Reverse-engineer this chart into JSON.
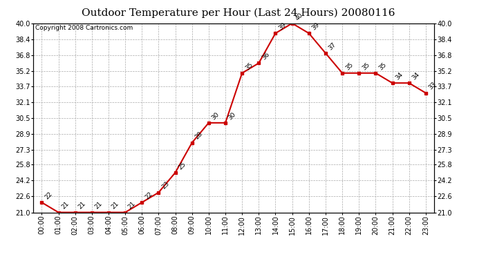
{
  "title": "Outdoor Temperature per Hour (Last 24 Hours) 20080116",
  "copyright": "Copyright 2008 Cartronics.com",
  "hours": [
    "00:00",
    "01:00",
    "02:00",
    "03:00",
    "04:00",
    "05:00",
    "06:00",
    "07:00",
    "08:00",
    "09:00",
    "10:00",
    "11:00",
    "12:00",
    "13:00",
    "14:00",
    "15:00",
    "16:00",
    "17:00",
    "18:00",
    "19:00",
    "20:00",
    "21:00",
    "22:00",
    "23:00"
  ],
  "temps": [
    22,
    21,
    21,
    21,
    21,
    21,
    22,
    23,
    25,
    28,
    30,
    30,
    35,
    36,
    39,
    40,
    39,
    37,
    35,
    35,
    35,
    34,
    34,
    33
  ],
  "ylim_min": 21.0,
  "ylim_max": 40.0,
  "yticks": [
    21.0,
    22.6,
    24.2,
    25.8,
    27.3,
    28.9,
    30.5,
    32.1,
    33.7,
    35.2,
    36.8,
    38.4,
    40.0
  ],
  "line_color": "#cc0000",
  "marker_color": "#cc0000",
  "bg_color": "#ffffff",
  "grid_color": "#aaaaaa",
  "title_fontsize": 11,
  "copyright_fontsize": 6.5,
  "label_fontsize": 6.5,
  "tick_fontsize": 7
}
